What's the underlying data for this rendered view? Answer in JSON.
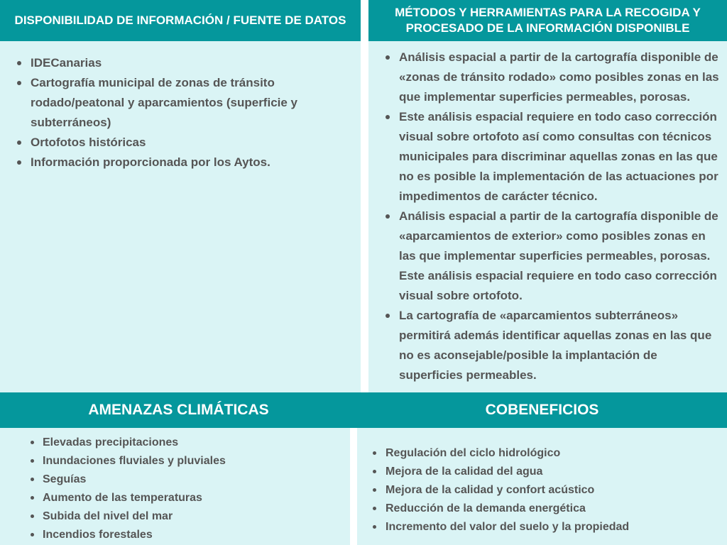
{
  "sections": {
    "fuentes": {
      "title": "DISPONIBILIDAD DE INFORMACIÓN / FUENTE DE DATOS",
      "items": [
        "IDECanarias",
        "Cartografía municipal de zonas de tránsito rodado/peatonal y aparcamientos (superficie y subterráneos)",
        "Ortofotos históricas",
        "Información proporcionada por los Aytos."
      ]
    },
    "metodos": {
      "title": "MÉTODOS Y HERRAMIENTAS PARA LA RECOGIDA Y PROCESADO DE LA INFORMACIÓN DISPONIBLE",
      "items": [
        "Análisis espacial a partir de la cartografía disponible de «zonas de tránsito rodado» como posibles zonas en las que implementar superficies permeables, porosas.",
        "Este análisis espacial requiere en todo caso corrección visual sobre ortofoto así como consultas con técnicos municipales para discriminar aquellas zonas en las que no es posible la implementación de las actuaciones por impedimentos de carácter técnico.",
        "Análisis espacial a partir de la cartografía disponible de «aparcamientos de exterior» como posibles zonas en las que implementar superficies permeables, porosas. Este análisis espacial requiere en todo caso corrección visual sobre ortofoto.",
        "La cartografía de «aparcamientos subterráneos» permitirá además identificar aquellas zonas en las que no es aconsejable/posible la implantación de superficies permeables."
      ]
    },
    "amenazas": {
      "title": "AMENAZAS CLIMÁTICAS",
      "items": [
        "Elevadas precipitaciones",
        "Inundaciones fluviales y pluviales",
        "Seguías",
        "Aumento de las temperaturas",
        "Subida del nivel del mar",
        "Incendios forestales"
      ]
    },
    "cobeneficios": {
      "title": "COBENEFICIOS",
      "items": [
        "Regulación del ciclo hidrológico",
        "Mejora de la calidad del agua",
        "Mejora de la calidad y confort acústico",
        "Reducción de la demanda energética",
        "Incremento del valor del suelo y la propiedad"
      ]
    }
  },
  "colors": {
    "header": "#05979c",
    "body": "#daf4f5",
    "text": "#555555"
  }
}
